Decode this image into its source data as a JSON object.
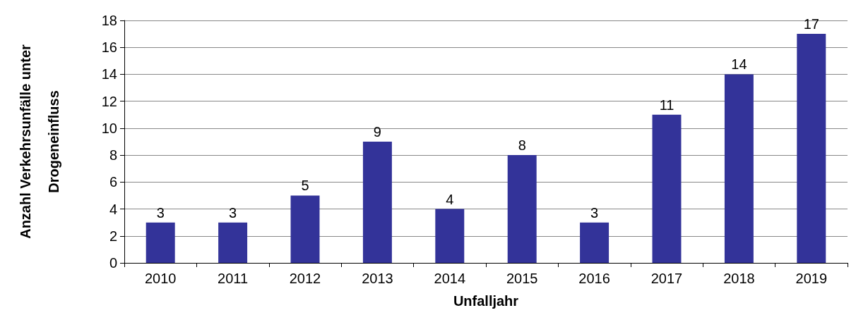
{
  "chart_data": {
    "type": "bar",
    "xlabel": "Unfalljahr",
    "ylabel": "Anzahl Verkehrsunfälle unter Drogeneinfluss",
    "categories": [
      "2010",
      "2011",
      "2012",
      "2013",
      "2014",
      "2015",
      "2016",
      "2017",
      "2018",
      "2019"
    ],
    "values": [
      3,
      3,
      5,
      9,
      4,
      8,
      3,
      11,
      14,
      17
    ],
    "color": "#333399",
    "ylim": [
      0,
      18
    ],
    "yticks": [
      0,
      2,
      4,
      6,
      8,
      10,
      12,
      14,
      16,
      18
    ],
    "grid": "y",
    "data_labels": true
  }
}
